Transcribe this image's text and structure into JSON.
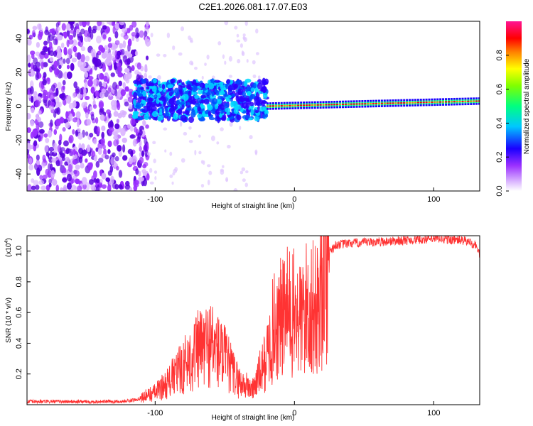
{
  "title": "C2E1.2026.081.17.07.E03",
  "chart_data": [
    {
      "type": "heatmap",
      "title": "C2E1.2026.081.17.07.E03",
      "xlabel": "Height of straight line (km)",
      "ylabel": "Frequency (Hz)",
      "xlim": [
        -192,
        133
      ],
      "ylim": [
        -50,
        50
      ],
      "xticks": [
        -100,
        0,
        100
      ],
      "yticks": [
        -40,
        -20,
        0,
        20,
        40
      ],
      "colorbar": {
        "label": "Normalized spectral amplitude",
        "range": [
          0.0,
          1.0
        ],
        "ticks": [
          0.0,
          0.2,
          0.4,
          0.6,
          0.8
        ],
        "colors": [
          "#ffffff",
          "#9b30ff",
          "#0000ff",
          "#00ffff",
          "#00ff00",
          "#ffff00",
          "#ff8000",
          "#ff0000",
          "#ff1493"
        ]
      },
      "regions": [
        {
          "name": "scattered noise",
          "x_range": [
            -192,
            -105
          ],
          "freq_range": [
            -50,
            50
          ],
          "amplitude": 0.1
        },
        {
          "name": "transition band",
          "x_range": [
            -115,
            -20
          ],
          "freq_range": [
            -8,
            15
          ],
          "amplitude": 0.3
        },
        {
          "name": "narrow tone",
          "x_range": [
            -20,
            133
          ],
          "freq_center": [
            0,
            3
          ],
          "amplitude": 0.9
        }
      ]
    },
    {
      "type": "line",
      "xlabel": "Height of straight line (km)",
      "ylabel": "SNR (10 * v/v)",
      "y_scale_label": "(x10",
      "y_scale_exponent": "4",
      "y_scale_close": ")",
      "xlim": [
        -192,
        133
      ],
      "ylim": [
        0,
        1.1
      ],
      "xticks": [
        -100,
        0,
        100
      ],
      "yticks": [
        0.2,
        0.4,
        0.6,
        0.8,
        1.0
      ],
      "color": "#ff3333",
      "series": [
        {
          "name": "SNR",
          "x": [
            -192,
            -170,
            -150,
            -125,
            -115,
            -100,
            -90,
            -80,
            -70,
            -60,
            -50,
            -40,
            -30,
            -20,
            -15,
            -10,
            -5,
            0,
            5,
            10,
            15,
            20,
            25,
            30,
            40,
            60,
            80,
            100,
            120,
            125,
            130,
            133
          ],
          "y": [
            0.02,
            0.02,
            0.02,
            0.02,
            0.03,
            0.08,
            0.15,
            0.25,
            0.35,
            0.4,
            0.3,
            0.15,
            0.1,
            0.3,
            0.5,
            0.55,
            0.6,
            0.58,
            0.55,
            0.65,
            0.6,
            0.8,
            1.0,
            1.04,
            1.05,
            1.06,
            1.07,
            1.08,
            1.07,
            1.06,
            1.04,
            0.98
          ]
        }
      ]
    }
  ]
}
